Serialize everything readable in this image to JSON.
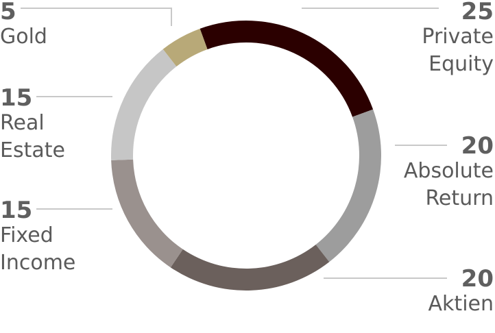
{
  "chart_data": {
    "type": "pie",
    "style": "donut",
    "title": "",
    "start_angle_deg": -20,
    "slices": [
      {
        "label": [
          "Private",
          "Equity"
        ],
        "value": 25,
        "color": "#2b0000"
      },
      {
        "label": [
          "Absolute",
          "Return"
        ],
        "value": 20,
        "color": "#9d9d9d"
      },
      {
        "label": [
          "Aktien"
        ],
        "value": 20,
        "color": "#6b605c"
      },
      {
        "label": [
          "Fixed",
          "Income"
        ],
        "value": 15,
        "color": "#9a918e"
      },
      {
        "label": [
          "Real",
          "Estate"
        ],
        "value": 15,
        "color": "#c6c6c6"
      },
      {
        "label": [
          "Gold"
        ],
        "value": 5,
        "color": "#b8a978"
      }
    ],
    "leader_line_color": "#c8c8c8",
    "legend": "none"
  }
}
